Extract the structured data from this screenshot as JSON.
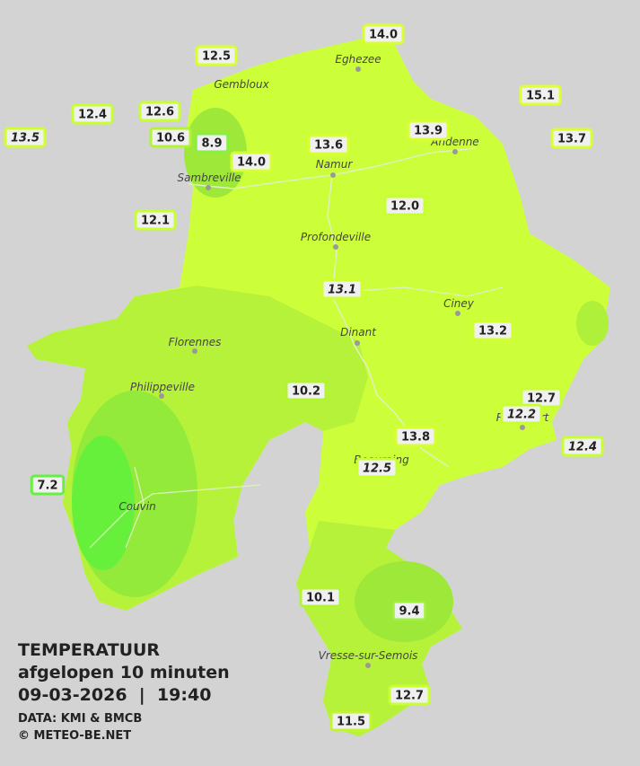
{
  "caption": {
    "title": "TEMPERATUUR",
    "subtitle": "afgelopen 10 minuten",
    "datetime": "09-03-2026  |  19:40",
    "source": "DATA: KMI & BMCB",
    "copyright": "© METEO-BE.NET"
  },
  "cities": [
    {
      "name": "Eghezee"
    },
    {
      "name": "Gembloux"
    },
    {
      "name": "Andenne"
    },
    {
      "name": "Namur"
    },
    {
      "name": "Sambreville"
    },
    {
      "name": "Profondeville"
    },
    {
      "name": "Ciney"
    },
    {
      "name": "Dinant"
    },
    {
      "name": "Florennes"
    },
    {
      "name": "Philippeville"
    },
    {
      "name": "Couvin"
    },
    {
      "name": "Rochefort"
    },
    {
      "name": "Beauraing"
    },
    {
      "name": "Vresse-sur-Semois"
    }
  ],
  "stations": [
    {
      "label": "14.0"
    },
    {
      "label": "12.5"
    },
    {
      "label": "12.4"
    },
    {
      "label": "12.6"
    },
    {
      "label": "13.5"
    },
    {
      "label": "10.6"
    },
    {
      "label": "8.9"
    },
    {
      "label": "14.0"
    },
    {
      "label": "13.6"
    },
    {
      "label": "13.9"
    },
    {
      "label": "15.1"
    },
    {
      "label": "13.7"
    },
    {
      "label": "12.1"
    },
    {
      "label": "12.0"
    },
    {
      "label": "13.1"
    },
    {
      "label": "13.2"
    },
    {
      "label": "10.2"
    },
    {
      "label": "12.7"
    },
    {
      "label": "12.2"
    },
    {
      "label": "12.4"
    },
    {
      "label": "13.8"
    },
    {
      "label": "12.5"
    },
    {
      "label": "7.2"
    },
    {
      "label": "10.1"
    },
    {
      "label": "9.4"
    },
    {
      "label": "12.7"
    },
    {
      "label": "11.5"
    }
  ]
}
